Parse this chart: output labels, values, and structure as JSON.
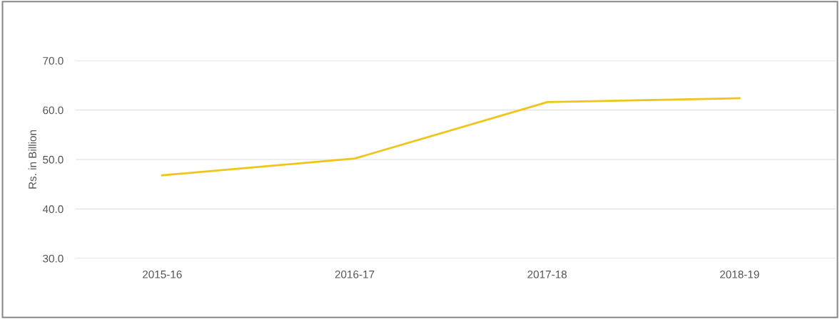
{
  "chart_data": {
    "type": "line",
    "ylabel": "Rs. in Billion",
    "categories": [
      "2015-16",
      "2016-17",
      "2017-18",
      "2018-19"
    ],
    "series": [
      {
        "color": "#f0c419",
        "values": [
          46.8,
          50.2,
          61.6,
          62.4
        ]
      }
    ],
    "ylim": [
      30,
      70
    ],
    "yticks": [
      {
        "value": 30,
        "label": "30.0"
      },
      {
        "value": 40,
        "label": "40.0"
      },
      {
        "value": 50,
        "label": "50.0"
      },
      {
        "value": 60,
        "label": "60.0"
      },
      {
        "value": 70,
        "label": "70.0"
      }
    ],
    "grid": "y",
    "marker": "none",
    "line_style": "solid"
  }
}
